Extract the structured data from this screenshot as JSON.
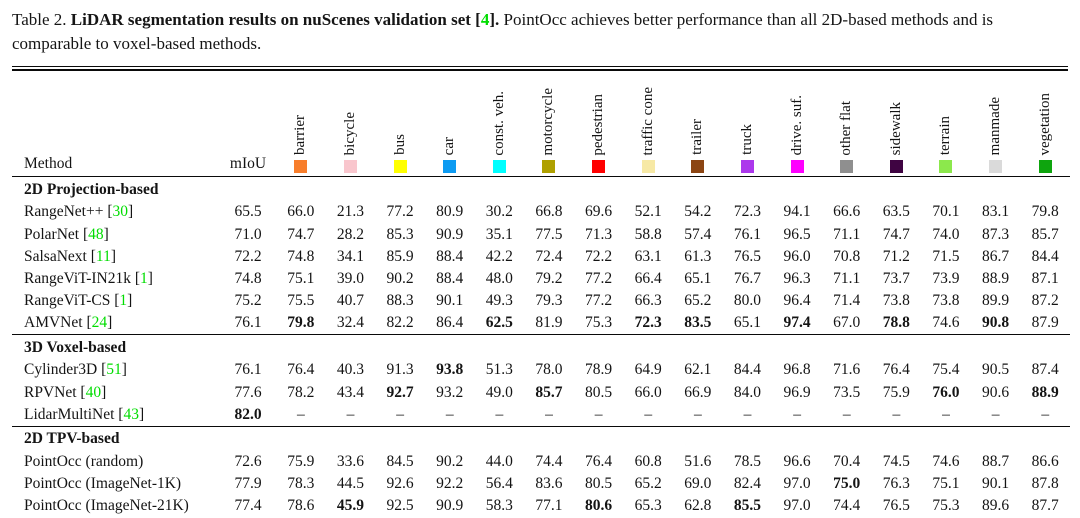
{
  "caption": {
    "prefix": "Table 2.",
    "bold_title": "LiDAR segmentation results on nuScenes validation set",
    "cite_open": "[",
    "cite": "4",
    "cite_close": "].",
    "rest": "PointOcc achieves better performance than all 2D-based methods and is comparable to voxel-based methods."
  },
  "colors": {
    "cite_green": "#00DD00"
  },
  "table": {
    "method_label": "Method",
    "miou_label": "mIoU",
    "dash": "–",
    "classes": [
      {
        "label": "barrier",
        "color": "#F87E2B"
      },
      {
        "label": "bicycle",
        "color": "#F9C6CD"
      },
      {
        "label": "bus",
        "color": "#FFFF00"
      },
      {
        "label": "car",
        "color": "#0D9BF2"
      },
      {
        "label": "const. veh.",
        "color": "#00FFFF"
      },
      {
        "label": "motorcycle",
        "color": "#AFA000"
      },
      {
        "label": "pedestrian",
        "color": "#FF0000"
      },
      {
        "label": "traffic cone",
        "color": "#F7E9A5"
      },
      {
        "label": "trailer",
        "color": "#8C4513"
      },
      {
        "label": "truck",
        "color": "#AC38EC"
      },
      {
        "label": "drive. suf.",
        "color": "#FF00FF"
      },
      {
        "label": "other flat",
        "color": "#8F8F8F"
      },
      {
        "label": "sidewalk",
        "color": "#3F0442"
      },
      {
        "label": "terrain",
        "color": "#8CE84C"
      },
      {
        "label": "manmade",
        "color": "#DADADA"
      },
      {
        "label": "vegetation",
        "color": "#0EA50E"
      }
    ],
    "sections": [
      {
        "title": "2D Projection-based",
        "rows": [
          {
            "method": "RangeNet++",
            "cite": "30",
            "miou": "65.5",
            "miou_bold": false,
            "values": [
              "66.0",
              "21.3",
              "77.2",
              "80.9",
              "30.2",
              "66.8",
              "69.6",
              "52.1",
              "54.2",
              "72.3",
              "94.1",
              "66.6",
              "63.5",
              "70.1",
              "83.1",
              "79.8"
            ],
            "bold": []
          },
          {
            "method": "PolarNet",
            "cite": "48",
            "miou": "71.0",
            "miou_bold": false,
            "values": [
              "74.7",
              "28.2",
              "85.3",
              "90.9",
              "35.1",
              "77.5",
              "71.3",
              "58.8",
              "57.4",
              "76.1",
              "96.5",
              "71.1",
              "74.7",
              "74.0",
              "87.3",
              "85.7"
            ],
            "bold": []
          },
          {
            "method": "SalsaNext",
            "cite": "11",
            "miou": "72.2",
            "miou_bold": false,
            "values": [
              "74.8",
              "34.1",
              "85.9",
              "88.4",
              "42.2",
              "72.4",
              "72.2",
              "63.1",
              "61.3",
              "76.5",
              "96.0",
              "70.8",
              "71.2",
              "71.5",
              "86.7",
              "84.4"
            ],
            "bold": []
          },
          {
            "method": "RangeViT-IN21k",
            "cite": "1",
            "miou": "74.8",
            "miou_bold": false,
            "values": [
              "75.1",
              "39.0",
              "90.2",
              "88.4",
              "48.0",
              "79.2",
              "77.2",
              "66.4",
              "65.1",
              "76.7",
              "96.3",
              "71.1",
              "73.7",
              "73.9",
              "88.9",
              "87.1"
            ],
            "bold": []
          },
          {
            "method": "RangeViT-CS",
            "cite": "1",
            "miou": "75.2",
            "miou_bold": false,
            "values": [
              "75.5",
              "40.7",
              "88.3",
              "90.1",
              "49.3",
              "79.3",
              "77.2",
              "66.3",
              "65.2",
              "80.0",
              "96.4",
              "71.4",
              "73.8",
              "73.8",
              "89.9",
              "87.2"
            ],
            "bold": []
          },
          {
            "method": "AMVNet",
            "cite": "24",
            "miou": "76.1",
            "miou_bold": false,
            "values": [
              "79.8",
              "32.4",
              "82.2",
              "86.4",
              "62.5",
              "81.9",
              "75.3",
              "72.3",
              "83.5",
              "65.1",
              "97.4",
              "67.0",
              "78.8",
              "74.6",
              "90.8",
              "87.9"
            ],
            "bold": [
              0,
              4,
              7,
              8,
              10,
              12,
              14
            ]
          }
        ]
      },
      {
        "title": "3D Voxel-based",
        "rows": [
          {
            "method": "Cylinder3D",
            "cite": "51",
            "miou": "76.1",
            "miou_bold": false,
            "values": [
              "76.4",
              "40.3",
              "91.3",
              "93.8",
              "51.3",
              "78.0",
              "78.9",
              "64.9",
              "62.1",
              "84.4",
              "96.8",
              "71.6",
              "76.4",
              "75.4",
              "90.5",
              "87.4"
            ],
            "bold": [
              3
            ]
          },
          {
            "method": "RPVNet",
            "cite": "40",
            "miou": "77.6",
            "miou_bold": false,
            "values": [
              "78.2",
              "43.4",
              "92.7",
              "93.2",
              "49.0",
              "85.7",
              "80.5",
              "66.0",
              "66.9",
              "84.0",
              "96.9",
              "73.5",
              "75.9",
              "76.0",
              "90.6",
              "88.9"
            ],
            "bold": [
              2,
              5,
              13,
              15
            ]
          },
          {
            "method": "LidarMultiNet",
            "cite": "43",
            "miou": "82.0",
            "miou_bold": true,
            "values": [
              "–",
              "–",
              "–",
              "–",
              "–",
              "–",
              "–",
              "–",
              "–",
              "–",
              "–",
              "–",
              "–",
              "–",
              "–",
              "–"
            ],
            "bold": []
          }
        ]
      },
      {
        "title": "2D TPV-based",
        "rows": [
          {
            "method": "PointOcc (random)",
            "cite": null,
            "miou": "72.6",
            "miou_bold": false,
            "values": [
              "75.9",
              "33.6",
              "84.5",
              "90.2",
              "44.0",
              "74.4",
              "76.4",
              "60.8",
              "51.6",
              "78.5",
              "96.6",
              "70.4",
              "74.5",
              "74.6",
              "88.7",
              "86.6"
            ],
            "bold": []
          },
          {
            "method": "PointOcc (ImageNet-1K)",
            "cite": null,
            "miou": "77.9",
            "miou_bold": false,
            "values": [
              "78.3",
              "44.5",
              "92.6",
              "92.2",
              "56.4",
              "83.6",
              "80.5",
              "65.2",
              "69.0",
              "82.4",
              "97.0",
              "75.0",
              "76.3",
              "75.1",
              "90.1",
              "87.8"
            ],
            "bold": [
              11
            ]
          },
          {
            "method": "PointOcc (ImageNet-21K)",
            "cite": null,
            "miou": "77.4",
            "miou_bold": false,
            "values": [
              "78.6",
              "45.9",
              "92.5",
              "90.9",
              "58.3",
              "77.1",
              "80.6",
              "65.3",
              "62.8",
              "85.5",
              "97.0",
              "74.4",
              "76.5",
              "75.3",
              "89.6",
              "87.7"
            ],
            "bold": [
              1,
              6,
              9
            ]
          }
        ]
      }
    ]
  }
}
